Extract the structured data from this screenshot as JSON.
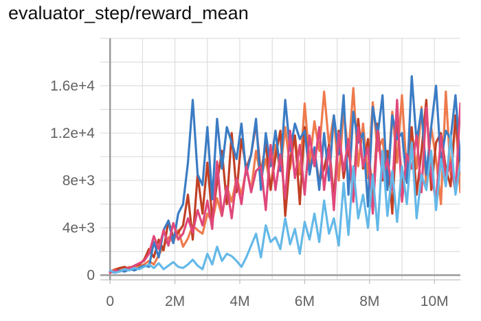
{
  "chart_data": {
    "type": "line",
    "title": "evaluator_step/reward_mean",
    "xlabel": "",
    "ylabel": "",
    "xlim": [
      -300000,
      10800000
    ],
    "ylim": [
      -400,
      20000
    ],
    "x_ticks": [
      0,
      2000000,
      4000000,
      6000000,
      8000000,
      10000000
    ],
    "x_tick_labels": [
      "0",
      "2M",
      "4M",
      "6M",
      "8M",
      "10M"
    ],
    "y_ticks": [
      0,
      4000,
      8000,
      12000,
      16000
    ],
    "y_tick_labels": [
      "0",
      "4e+3",
      "8e+3",
      "1.2e+4",
      "1.6e+4"
    ],
    "grid": true,
    "x_step": 150000,
    "series": [
      {
        "color": "#ee7a4d",
        "values": [
          300,
          500,
          600,
          500,
          700,
          600,
          800,
          900,
          1200,
          900,
          1700,
          2400,
          3200,
          2800,
          3800,
          2400,
          3100,
          4200,
          3800,
          3500,
          5200,
          4500,
          6500,
          5000,
          7500,
          6200,
          8200,
          6800,
          9000,
          7200,
          10500,
          8200,
          9800,
          7200,
          11000,
          8800,
          12500,
          9000,
          11800,
          8500,
          14500,
          9500,
          13000,
          10500,
          15500,
          11000,
          13500,
          8000,
          14000,
          10200,
          15800,
          9200,
          12800,
          8200,
          14600,
          10500,
          11500,
          7800,
          13800,
          9500,
          15200,
          8500,
          12200,
          9000,
          14200,
          7500,
          12500,
          9800,
          6000,
          15500,
          8500,
          13200,
          7000,
          11800
        ]
      },
      {
        "color": "#c13f24",
        "values": [
          200,
          400,
          600,
          700,
          500,
          800,
          900,
          1300,
          2200,
          1500,
          3000,
          2100,
          4600,
          3200,
          3600,
          4200,
          6800,
          3000,
          8500,
          5200,
          9500,
          4800,
          7800,
          10500,
          6000,
          12000,
          7000,
          11500,
          9000,
          10200,
          12800,
          8500,
          11200,
          7200,
          10000,
          12200,
          5000,
          9800,
          11800,
          6000,
          12500,
          8800,
          10500,
          7800,
          9000,
          11000,
          6500,
          12200,
          8200,
          10800,
          7000,
          13200,
          9000,
          11500,
          6200,
          12800,
          8000,
          10500,
          5200,
          13500,
          7500,
          9500,
          12500,
          6800,
          10500,
          14800,
          7200,
          11200,
          12000,
          9000,
          7500,
          13500,
          8800,
          6800
        ]
      },
      {
        "color": "#3b7cc4",
        "values": [
          300,
          200,
          400,
          300,
          500,
          400,
          600,
          800,
          700,
          2800,
          1500,
          3800,
          4600,
          2700,
          5200,
          6000,
          9500,
          14800,
          8500,
          7600,
          12500,
          6400,
          13200,
          9000,
          12500,
          11200,
          9800,
          12800,
          8500,
          10200,
          13200,
          7200,
          12000,
          9200,
          12200,
          8800,
          14800,
          10500,
          12800,
          11500,
          12200,
          8500,
          10800,
          7200,
          12000,
          8000,
          13500,
          10200,
          15200,
          6800,
          13800,
          11200,
          12000,
          5800,
          14200,
          11800,
          15200,
          7200,
          13500,
          11500,
          12000,
          7800,
          16800,
          11200,
          14000,
          8500,
          12500,
          16000,
          9500,
          12200,
          11500,
          15200,
          9500,
          11200
        ]
      },
      {
        "color": "#e0487b",
        "values": [
          200,
          400,
          300,
          500,
          600,
          800,
          1000,
          1200,
          1800,
          3300,
          2200,
          3800,
          2500,
          4400,
          3000,
          3500,
          4800,
          3600,
          5500,
          4200,
          6300,
          3900,
          9600,
          5000,
          7500,
          4800,
          8200,
          6000,
          9200,
          7000,
          8800,
          9200,
          5500,
          11000,
          7200,
          10200,
          6500,
          12200,
          8200,
          11000,
          6800,
          11800,
          9200,
          12500,
          7200,
          10800,
          5500,
          12000,
          8800,
          11500,
          6200,
          12500,
          9200,
          10800,
          5200,
          12200,
          8200,
          9800,
          7200,
          14800,
          6200,
          10200,
          9000,
          11800,
          7000,
          14200,
          8500,
          6200,
          11800,
          8200,
          9500,
          7000,
          14500,
          8000
        ]
      },
      {
        "color": "#64b8e8",
        "values": [
          400,
          200,
          300,
          500,
          400,
          600,
          500,
          700,
          900,
          600,
          1000,
          500,
          800,
          1100,
          700,
          600,
          900,
          1300,
          800,
          500,
          1800,
          900,
          2400,
          1200,
          1800,
          1600,
          1200,
          700,
          1500,
          2500,
          3500,
          1500,
          4200,
          2800,
          3200,
          2200,
          4800,
          2600,
          3900,
          1800,
          4500,
          3000,
          5200,
          2800,
          6300,
          3500,
          4800,
          2500,
          7800,
          3400,
          9200,
          4800,
          6800,
          4000,
          8500,
          3800,
          10500,
          5000,
          8800,
          4500,
          9200,
          6000,
          11200,
          4800,
          8500,
          7200,
          10500,
          5500,
          9800,
          7500,
          11800,
          6800,
          9500,
          10200
        ]
      }
    ]
  }
}
